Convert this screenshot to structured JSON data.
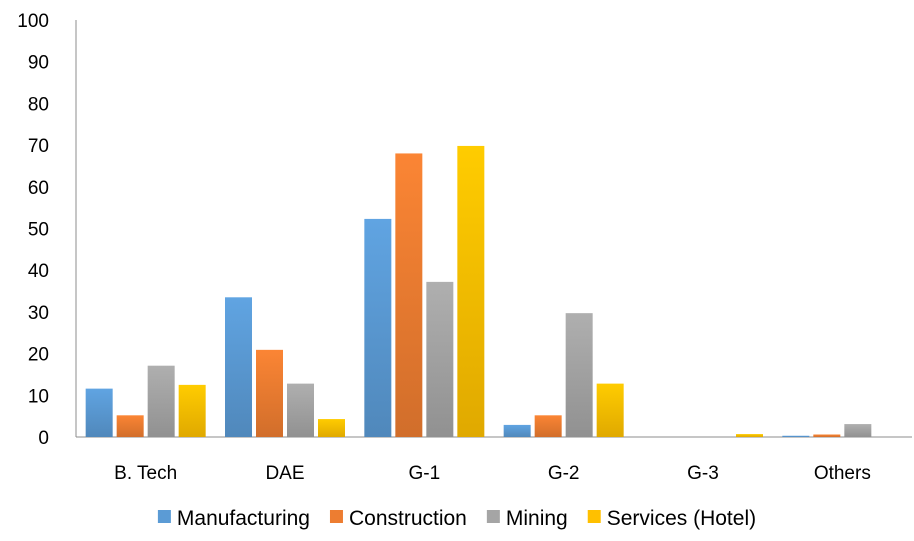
{
  "chart_data": {
    "type": "bar",
    "categories": [
      "B. Tech",
      "DAE",
      "G-1",
      "G-2",
      "G-3",
      "Others"
    ],
    "series": [
      {
        "name": "Manufacturing",
        "color": "#5b9bd5",
        "values": [
          11.6,
          33.5,
          52.3,
          2.9,
          0,
          0.3
        ]
      },
      {
        "name": "Construction",
        "color": "#ed7d31",
        "values": [
          5.2,
          20.9,
          68.0,
          5.2,
          0,
          0.6
        ]
      },
      {
        "name": "Mining",
        "color": "#a5a5a5",
        "values": [
          17.1,
          12.8,
          37.2,
          29.7,
          0,
          3.1
        ]
      },
      {
        "name": "Services (Hotel)",
        "color": "#ffc000",
        "values": [
          12.5,
          4.3,
          69.8,
          12.8,
          0.7,
          0
        ]
      }
    ],
    "y_ticks": [
      "0",
      "10",
      "20",
      "30",
      "40",
      "50",
      "60",
      "70",
      "80",
      "90",
      "100"
    ],
    "ylim": [
      0,
      100
    ],
    "grid": false,
    "legend_position": "bottom"
  }
}
